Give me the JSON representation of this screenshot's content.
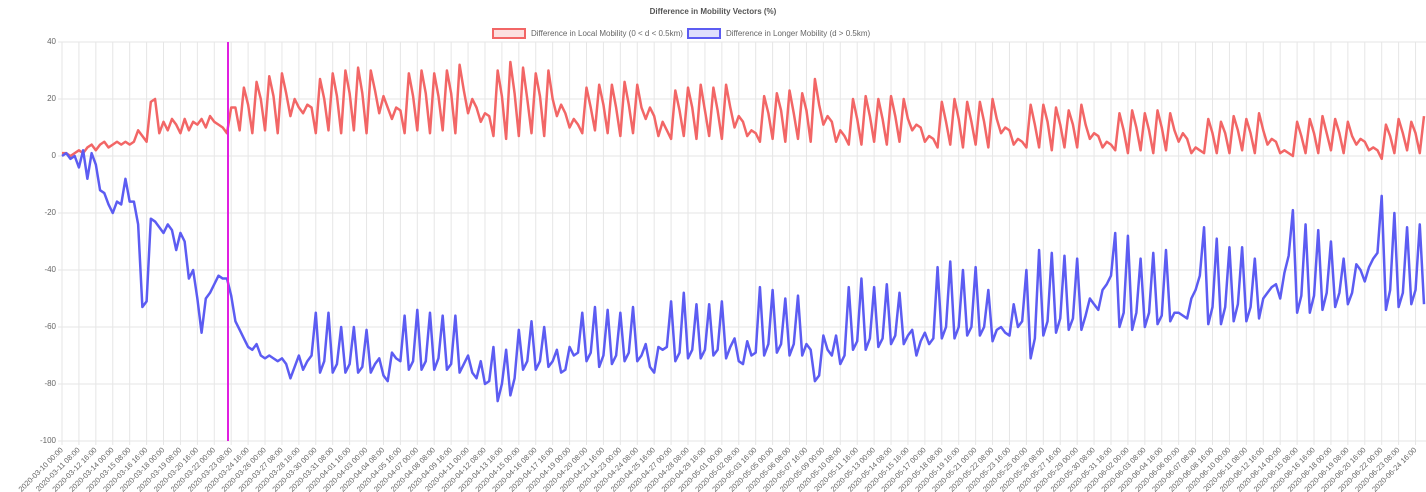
{
  "chart_data": {
    "type": "line",
    "title": "Difference in Mobility Vectors (%)",
    "categories": [
      "2020-03-10 00:00",
      null,
      null,
      null,
      "2020-03-11 08:00",
      null,
      null,
      null,
      "2020-03-12 16:00",
      null,
      null,
      null,
      "2020-03-14 00:00",
      null,
      null,
      null,
      "2020-03-15 08:00",
      null,
      null,
      null,
      "2020-03-16 16:00",
      null,
      null,
      null,
      "2020-03-18 00:00",
      null,
      null,
      null,
      "2020-03-19 08:00",
      null,
      null,
      null,
      "2020-03-20 16:00",
      null,
      null,
      null,
      "2020-03-22 00:00",
      null,
      null,
      null,
      "2020-03-23 08:00",
      null,
      null,
      null,
      "2020-03-24 16:00",
      null,
      null,
      null,
      "2020-03-26 00:00",
      null,
      null,
      null,
      "2020-03-27 08:00",
      null,
      null,
      null,
      "2020-03-28 16:00",
      null,
      null,
      null,
      "2020-03-30 00:00",
      null,
      null,
      null,
      "2020-03-31 08:00",
      null,
      null,
      null,
      "2020-04-01 16:00",
      null,
      null,
      null,
      "2020-04-03 00:00",
      null,
      null,
      null,
      "2020-04-04 08:00",
      null,
      null,
      null,
      "2020-04-05 16:00",
      null,
      null,
      null,
      "2020-04-07 00:00",
      null,
      null,
      null,
      "2020-04-08 08:00",
      null,
      null,
      null,
      "2020-04-09 16:00",
      null,
      null,
      null,
      "2020-04-11 00:00",
      null,
      null,
      null,
      "2020-04-12 08:00",
      null,
      null,
      null,
      "2020-04-13 16:00",
      null,
      null,
      null,
      "2020-04-15 00:00",
      null,
      null,
      null,
      "2020-04-16 08:00",
      null,
      null,
      null,
      "2020-04-17 16:00",
      null,
      null,
      null,
      "2020-04-19 00:00",
      null,
      null,
      null,
      "2020-04-20 08:00",
      null,
      null,
      null,
      "2020-04-21 16:00",
      null,
      null,
      null,
      "2020-04-23 00:00",
      null,
      null,
      null,
      "2020-04-24 08:00",
      null,
      null,
      null,
      "2020-04-25 16:00",
      null,
      null,
      null,
      "2020-04-27 00:00",
      null,
      null,
      null,
      "2020-04-28 08:00",
      null,
      null,
      null,
      "2020-04-29 16:00",
      null,
      null,
      null,
      "2020-05-01 00:00",
      null,
      null,
      null,
      "2020-05-02 08:00",
      null,
      null,
      null,
      "2020-05-03 16:00",
      null,
      null,
      null,
      "2020-05-05 00:00",
      null,
      null,
      null,
      "2020-05-06 08:00",
      null,
      null,
      null,
      "2020-05-07 16:00",
      null,
      null,
      null,
      "2020-05-09 00:00",
      null,
      null,
      null,
      "2020-05-10 08:00",
      null,
      null,
      null,
      "2020-05-11 16:00",
      null,
      null,
      null,
      "2020-05-13 00:00",
      null,
      null,
      null,
      "2020-05-14 08:00",
      null,
      null,
      null,
      "2020-05-15 16:00",
      null,
      null,
      null,
      "2020-05-17 00:00",
      null,
      null,
      null,
      "2020-05-18 08:00",
      null,
      null,
      null,
      "2020-05-19 16:00",
      null,
      null,
      null,
      "2020-05-21 00:00",
      null,
      null,
      null,
      "2020-05-22 08:00",
      null,
      null,
      null,
      "2020-05-23 16:00",
      null,
      null,
      null,
      "2020-05-25 00:00",
      null,
      null,
      null,
      "2020-05-26 08:00",
      null,
      null,
      null,
      "2020-05-27 16:00",
      null,
      null,
      null,
      "2020-05-29 00:00",
      null,
      null,
      null,
      "2020-05-30 08:00",
      null,
      null,
      null,
      "2020-05-31 16:00",
      null,
      null,
      null,
      "2020-06-02 00:00",
      null,
      null,
      null,
      "2020-06-03 08:00",
      null,
      null,
      null,
      "2020-06-04 16:00",
      null,
      null,
      null,
      "2020-06-06 00:00",
      null,
      null,
      null,
      "2020-06-07 08:00",
      null,
      null,
      null,
      "2020-06-08 16:00",
      null,
      null,
      null,
      "2020-06-10 00:00",
      null,
      null,
      null,
      "2020-06-11 08:00",
      null,
      null,
      null,
      "2020-06-12 16:00",
      null,
      null,
      null,
      "2020-06-14 00:00",
      null,
      null,
      null,
      "2020-06-15 08:00",
      null,
      null,
      null,
      "2020-06-16 16:00",
      null,
      null,
      null,
      "2020-06-18 00:00",
      null,
      null,
      null,
      "2020-06-19 08:00",
      null,
      null,
      null,
      "2020-06-20 16:00",
      null,
      null,
      null,
      "2020-06-22 00:00",
      null,
      null,
      null,
      "2020-06-23 08:00",
      null,
      null,
      null,
      "2020-06-24 16:00",
      null,
      null
    ],
    "series": [
      {
        "name": "Difference in Local Mobility (0 < d < 0.5km)",
        "color": "#f26666",
        "values": [
          1,
          1,
          0,
          1,
          2,
          1,
          3,
          4,
          2,
          4,
          5,
          3,
          4,
          5,
          4,
          5,
          4,
          5,
          9,
          7,
          5,
          19,
          20,
          8,
          12,
          9,
          13,
          11,
          8,
          13,
          9,
          12,
          11,
          13,
          10,
          14,
          12,
          11,
          10,
          8,
          17,
          17,
          9,
          24,
          18,
          8,
          26,
          20,
          9,
          28,
          21,
          8,
          29,
          22,
          14,
          20,
          17,
          15,
          18,
          17,
          8,
          27,
          20,
          9,
          29,
          21,
          8,
          30,
          22,
          9,
          31,
          22,
          8,
          30,
          23,
          15,
          21,
          17,
          13,
          17,
          16,
          8,
          29,
          21,
          9,
          30,
          22,
          8,
          29,
          21,
          9,
          30,
          22,
          8,
          32,
          23,
          15,
          20,
          17,
          12,
          15,
          14,
          7,
          30,
          21,
          6,
          33,
          22,
          7,
          31,
          20,
          8,
          29,
          21,
          7,
          30,
          20,
          14,
          18,
          15,
          10,
          13,
          11,
          8,
          24,
          17,
          9,
          25,
          18,
          8,
          25,
          17,
          7,
          26,
          18,
          8,
          25,
          17,
          13,
          17,
          14,
          7,
          12,
          9,
          6,
          23,
          16,
          7,
          24,
          17,
          6,
          25,
          16,
          7,
          24,
          16,
          6,
          25,
          17,
          10,
          14,
          12,
          7,
          9,
          8,
          5,
          21,
          15,
          6,
          22,
          16,
          5,
          23,
          15,
          6,
          22,
          16,
          5,
          27,
          18,
          11,
          14,
          12,
          5,
          9,
          7,
          4,
          20,
          13,
          4,
          21,
          14,
          5,
          20,
          13,
          4,
          21,
          14,
          5,
          20,
          13,
          9,
          11,
          10,
          5,
          7,
          6,
          3,
          19,
          12,
          4,
          20,
          13,
          3,
          19,
          12,
          4,
          19,
          12,
          3,
          20,
          13,
          8,
          10,
          9,
          4,
          6,
          5,
          3,
          18,
          11,
          3,
          18,
          12,
          2,
          17,
          11,
          3,
          16,
          11,
          3,
          18,
          11,
          6,
          8,
          7,
          3,
          5,
          4,
          2,
          15,
          9,
          1,
          16,
          10,
          2,
          15,
          9,
          1,
          16,
          10,
          2,
          15,
          9,
          5,
          8,
          6,
          1,
          3,
          2,
          1,
          13,
          8,
          1,
          12,
          8,
          1,
          14,
          9,
          2,
          13,
          8,
          1,
          15,
          9,
          4,
          6,
          5,
          1,
          2,
          1,
          0,
          12,
          7,
          1,
          13,
          8,
          1,
          14,
          8,
          2,
          13,
          8,
          1,
          12,
          7,
          4,
          6,
          5,
          2,
          3,
          2,
          -1,
          11,
          7,
          1,
          13,
          8,
          2,
          12,
          8,
          1,
          14
        ]
      },
      {
        "name": "Difference in Longer Mobility (d > 0.5km)",
        "color": "#5c5cf2",
        "values": [
          0,
          1,
          -1,
          0,
          -4,
          2,
          -8,
          1,
          -3,
          -12,
          -13,
          -17,
          -20,
          -16,
          -17,
          -8,
          -16,
          -16,
          -24,
          -53,
          -51,
          -22,
          -23,
          -25,
          -27,
          -24,
          -26,
          -33,
          -27,
          -30,
          -43,
          -40,
          -50,
          -62,
          -50,
          -48,
          -45,
          -42,
          -43,
          -43,
          -49,
          -58,
          -61,
          -64,
          -67,
          -68,
          -66,
          -70,
          -71,
          -70,
          -71,
          -72,
          -71,
          -73,
          -78,
          -74,
          -70,
          -75,
          -72,
          -70,
          -55,
          -76,
          -72,
          -55,
          -76,
          -73,
          -60,
          -76,
          -73,
          -60,
          -76,
          -74,
          -61,
          -76,
          -73,
          -71,
          -77,
          -79,
          -69,
          -71,
          -72,
          -56,
          -75,
          -72,
          -54,
          -75,
          -72,
          -55,
          -75,
          -71,
          -56,
          -75,
          -73,
          -56,
          -76,
          -73,
          -70,
          -76,
          -78,
          -72,
          -80,
          -79,
          -67,
          -86,
          -80,
          -68,
          -84,
          -78,
          -61,
          -75,
          -72,
          -58,
          -75,
          -72,
          -60,
          -74,
          -72,
          -68,
          -76,
          -75,
          -67,
          -70,
          -69,
          -55,
          -72,
          -69,
          -53,
          -74,
          -70,
          -54,
          -73,
          -70,
          -55,
          -72,
          -69,
          -53,
          -72,
          -70,
          -66,
          -74,
          -76,
          -67,
          -68,
          -67,
          -51,
          -72,
          -69,
          -48,
          -71,
          -68,
          -52,
          -71,
          -68,
          -52,
          -70,
          -68,
          -51,
          -71,
          -67,
          -64,
          -72,
          -73,
          -65,
          -70,
          -69,
          -46,
          -70,
          -66,
          -47,
          -69,
          -66,
          -50,
          -70,
          -66,
          -49,
          -70,
          -66,
          -68,
          -79,
          -77,
          -63,
          -68,
          -70,
          -63,
          -73,
          -70,
          -46,
          -68,
          -65,
          -43,
          -68,
          -64,
          -46,
          -67,
          -64,
          -45,
          -66,
          -63,
          -48,
          -66,
          -63,
          -61,
          -70,
          -65,
          -62,
          -66,
          -64,
          -39,
          -64,
          -60,
          -37,
          -64,
          -60,
          -40,
          -63,
          -60,
          -39,
          -63,
          -60,
          -47,
          -65,
          -61,
          -60,
          -62,
          -63,
          -52,
          -60,
          -58,
          -40,
          -71,
          -64,
          -33,
          -63,
          -58,
          -34,
          -62,
          -57,
          -35,
          -61,
          -57,
          -36,
          -61,
          -56,
          -50,
          -52,
          -54,
          -47,
          -45,
          -42,
          -27,
          -60,
          -55,
          -28,
          -61,
          -55,
          -36,
          -60,
          -55,
          -34,
          -59,
          -56,
          -33,
          -58,
          -55,
          -55,
          -56,
          -57,
          -50,
          -47,
          -42,
          -25,
          -59,
          -53,
          -29,
          -59,
          -53,
          -32,
          -58,
          -52,
          -32,
          -58,
          -53,
          -36,
          -57,
          -50,
          -48,
          -46,
          -45,
          -50,
          -41,
          -35,
          -19,
          -55,
          -49,
          -24,
          -55,
          -49,
          -26,
          -54,
          -48,
          -30,
          -53,
          -48,
          -36,
          -52,
          -48,
          -38,
          -40,
          -44,
          -39,
          -36,
          -34,
          -14,
          -54,
          -47,
          -20,
          -53,
          -48,
          -25,
          -52,
          -47,
          -24,
          -52
        ]
      }
    ],
    "ylim": [
      -100,
      40
    ],
    "yticks": [
      -100,
      -80,
      -60,
      -40,
      -20,
      0,
      20,
      40
    ],
    "grid": true,
    "legend": "top"
  }
}
